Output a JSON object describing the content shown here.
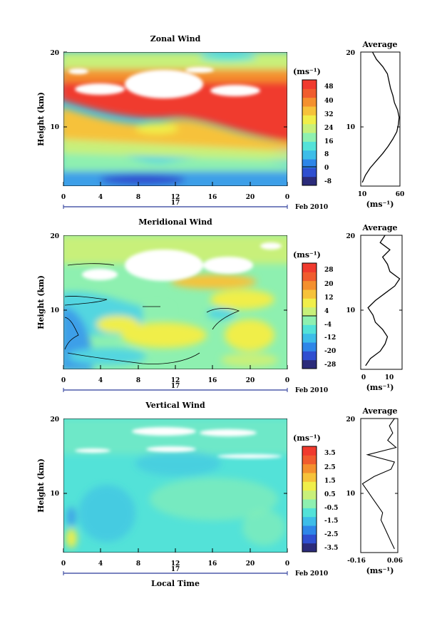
{
  "panels": [
    {
      "title": "Zonal Wind",
      "ylabel": "Height (km)",
      "y_ticks": [
        "10",
        "20"
      ],
      "x_ticks": [
        "0",
        "4",
        "8",
        "12",
        "16",
        "20",
        "0"
      ],
      "date_label": "17",
      "month_label": "Feb 2010",
      "unit_label": "(ms⁻¹)",
      "colorbar_ticks": [
        "48",
        "40",
        "32",
        "24",
        "16",
        "8",
        "0",
        "-8"
      ],
      "avg_title": "Average",
      "avg_x_ticks": [
        "10",
        "60"
      ],
      "avg_y_ticks": [
        "10",
        "20"
      ],
      "avg_unit": "(ms⁻¹)"
    },
    {
      "title": "Meridional Wind",
      "ylabel": "Height (km)",
      "y_ticks": [
        "10",
        "20"
      ],
      "x_ticks": [
        "0",
        "4",
        "8",
        "12",
        "16",
        "20",
        "0"
      ],
      "date_label": "17",
      "month_label": "Feb 2010",
      "unit_label": "(ms⁻¹)",
      "colorbar_ticks": [
        "28",
        "20",
        "12",
        "4",
        "-4",
        "-12",
        "-20",
        "-28"
      ],
      "avg_title": "Average",
      "avg_x_ticks": [
        "0",
        "10"
      ],
      "avg_y_ticks": [
        "10",
        "20"
      ],
      "avg_unit": "(ms⁻¹)"
    },
    {
      "title": "Vertical Wind",
      "ylabel": "Height (km)",
      "y_ticks": [
        "10",
        "20"
      ],
      "x_ticks": [
        "0",
        "4",
        "8",
        "12",
        "16",
        "20",
        "0"
      ],
      "date_label": "17",
      "month_label": "Feb 2010",
      "unit_label": "(ms⁻¹)",
      "colorbar_ticks": [
        "3.5",
        "2.5",
        "1.5",
        "0.5",
        "-0.5",
        "-1.5",
        "-2.5",
        "-3.5"
      ],
      "avg_title": "Average",
      "avg_x_ticks": [
        "-0.16",
        "0.06"
      ],
      "avg_y_ticks": [
        "10",
        "20"
      ],
      "avg_unit": "(ms⁻¹)"
    }
  ],
  "xlabel": "Local Time",
  "colors": {
    "scale": [
      "#2b2b7a",
      "#2f4fd0",
      "#2e86e8",
      "#3dbde8",
      "#53e2d8",
      "#8ef0b0",
      "#c8f07a",
      "#f0ee4a",
      "#f6c23a",
      "#f4902e",
      "#f05c2e",
      "#f03a2e"
    ]
  },
  "chart_data": [
    {
      "type": "heatmap",
      "title": "Zonal Wind",
      "xlabel": "",
      "ylabel": "Height (km)",
      "xlim": [
        0,
        24
      ],
      "ylim": [
        1.5,
        20
      ],
      "zlim": [
        -8,
        52
      ],
      "average_profile": {
        "xlim": [
          10,
          60
        ],
        "height": [
          2,
          3,
          4,
          5,
          6,
          7,
          8,
          9,
          10,
          11,
          12,
          13,
          14,
          15,
          16,
          17,
          18,
          19,
          20
        ],
        "values": [
          12,
          16,
          22,
          30,
          38,
          45,
          51,
          56,
          58,
          59,
          57,
          53,
          51,
          48,
          46,
          44,
          38,
          30,
          25
        ]
      }
    },
    {
      "type": "heatmap",
      "title": "Meridional Wind",
      "xlabel": "",
      "ylabel": "Height (km)",
      "xlim": [
        0,
        24
      ],
      "ylim": [
        1.5,
        20
      ],
      "zlim": [
        -28,
        32
      ],
      "average_profile": {
        "xlim": [
          -2,
          15
        ],
        "height": [
          2,
          3,
          4,
          5,
          6,
          7,
          8,
          9,
          10,
          11,
          12,
          13,
          14,
          15,
          16,
          17,
          18,
          19,
          20
        ],
        "values": [
          0,
          2,
          6,
          8,
          9,
          7,
          4,
          3,
          1,
          4,
          8,
          12,
          14,
          10,
          9,
          7,
          10,
          6,
          8
        ]
      }
    },
    {
      "type": "heatmap",
      "title": "Vertical Wind",
      "xlabel": "Local Time",
      "ylabel": "Height (km)",
      "xlim": [
        0,
        24
      ],
      "ylim": [
        1.5,
        20
      ],
      "zlim": [
        -4,
        4
      ],
      "average_profile": {
        "xlim": [
          -0.16,
          0.06
        ],
        "height": [
          2,
          3,
          4,
          5,
          6,
          7,
          8,
          9,
          10,
          11,
          12,
          13,
          14,
          15,
          16,
          17,
          18,
          19,
          20
        ],
        "values": [
          0.04,
          0.02,
          0.0,
          -0.02,
          -0.04,
          -0.03,
          -0.06,
          -0.09,
          -0.12,
          -0.15,
          -0.08,
          0.02,
          0.04,
          -0.12,
          0.05,
          0.0,
          0.03,
          0.01,
          0.04
        ]
      }
    }
  ]
}
